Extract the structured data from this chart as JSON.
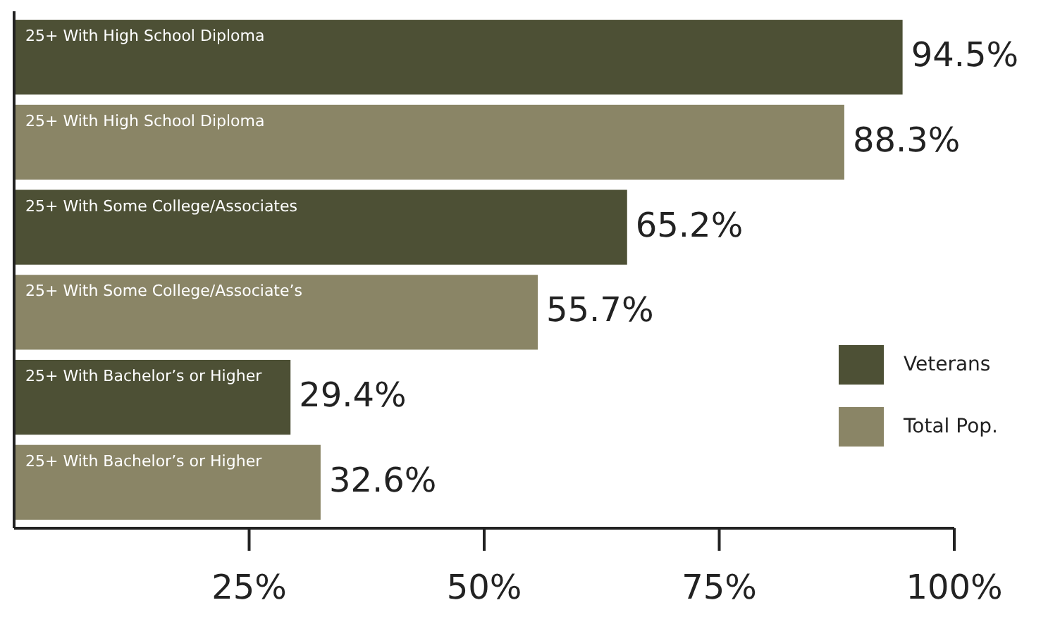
{
  "chart_data": {
    "type": "bar",
    "orientation": "horizontal",
    "categories": [
      "25+ With High School Diploma",
      "25+ With High School Diploma",
      "25+ With Some College/Associates",
      "25+ With Some College/Associate’s",
      "25+ With Bachelor’s or Higher",
      "25+ With Bachelor’s or Higher"
    ],
    "series": [
      {
        "name": "Veterans",
        "color": "#4d5035",
        "values": [
          94.5,
          null,
          65.2,
          null,
          29.4,
          null
        ],
        "value_labels": [
          "94.5%",
          null,
          "65.2%",
          null,
          "29.4%",
          null
        ]
      },
      {
        "name": "Total Pop.",
        "color": "#8a8566",
        "values": [
          null,
          88.3,
          null,
          55.7,
          null,
          32.6
        ],
        "value_labels": [
          null,
          "88.3%",
          null,
          "55.7%",
          null,
          "32.6%"
        ]
      }
    ],
    "xlim": [
      0,
      100
    ],
    "xticks": [
      {
        "value": 25,
        "label": "25%"
      },
      {
        "value": 50,
        "label": "50%"
      },
      {
        "value": 75,
        "label": "75%"
      },
      {
        "value": 100,
        "label": "100%"
      }
    ],
    "legend": "right",
    "grid": false
  }
}
